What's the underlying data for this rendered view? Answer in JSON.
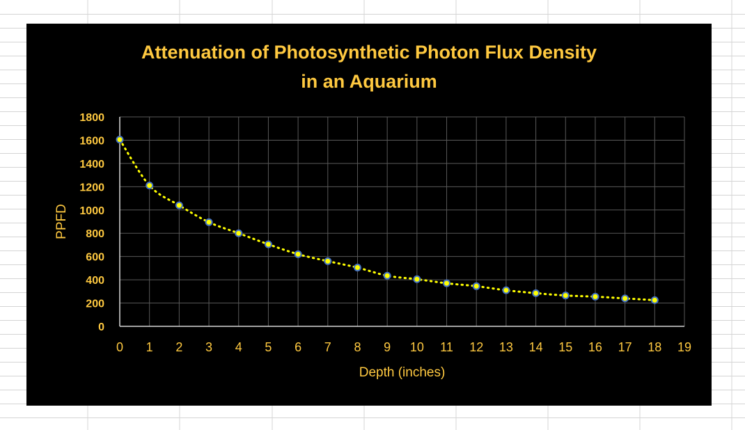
{
  "colors": {
    "background": "#000000",
    "text": "#ffc940",
    "gridline": "#595959",
    "axis": "#d9d9d9",
    "trendline": "#ffff00",
    "marker_fill": "#ffff00",
    "marker_edge": "#4472c4",
    "sheet_grid": "#d4d4d4"
  },
  "chart_data": {
    "type": "scatter",
    "title_line1": "Attenuation of Photosynthetic Photon Flux Density",
    "title_line2": "in an Aquarium",
    "xlabel": "Depth (inches)",
    "ylabel": "PPFD",
    "xlim": [
      0,
      19
    ],
    "ylim": [
      0,
      1800
    ],
    "xticks": [
      "0",
      "1",
      "2",
      "3",
      "4",
      "5",
      "6",
      "7",
      "8",
      "9",
      "10",
      "11",
      "12",
      "13",
      "14",
      "15",
      "16",
      "17",
      "18",
      "19"
    ],
    "yticks": [
      "0",
      "200",
      "400",
      "600",
      "800",
      "1000",
      "1200",
      "1400",
      "1600",
      "1800"
    ],
    "grid": true,
    "legend": "none",
    "trendline": "dotted smooth curve",
    "x": [
      0,
      1,
      2,
      3,
      4,
      5,
      6,
      7,
      8,
      9,
      10,
      11,
      12,
      13,
      14,
      15,
      16,
      17,
      18
    ],
    "y": [
      1605,
      1210,
      1040,
      895,
      800,
      705,
      620,
      560,
      505,
      435,
      405,
      370,
      345,
      310,
      285,
      265,
      255,
      240,
      225
    ]
  }
}
